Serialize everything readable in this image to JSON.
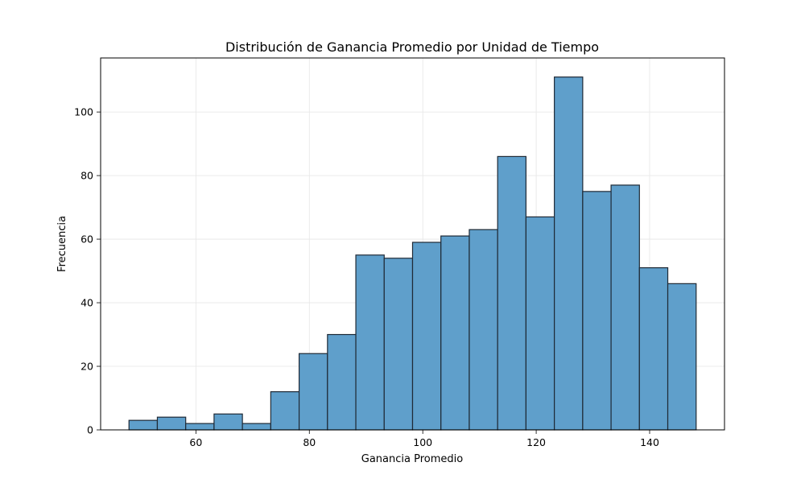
{
  "chart_data": {
    "type": "bar",
    "title": "Distribución de Ganancia Promedio por Unidad de Tiempo",
    "xlabel": "Ganancia Promedio",
    "ylabel": "Frecuencia",
    "xlim": [
      43.2,
      153.2
    ],
    "ylim": [
      0,
      117
    ],
    "xticks": [
      60,
      80,
      100,
      120,
      140
    ],
    "yticks": [
      0,
      20,
      40,
      60,
      80,
      100
    ],
    "grid": true,
    "bar_color": "#5f9fcb",
    "edge_color": "#1f2a36",
    "bin_start": 48.2,
    "bin_width": 5.0,
    "bins": [
      {
        "x0": 48.2,
        "x1": 53.2,
        "count": 3
      },
      {
        "x0": 53.2,
        "x1": 58.2,
        "count": 4
      },
      {
        "x0": 58.2,
        "x1": 63.2,
        "count": 2
      },
      {
        "x0": 63.2,
        "x1": 68.2,
        "count": 5
      },
      {
        "x0": 68.2,
        "x1": 73.2,
        "count": 2
      },
      {
        "x0": 73.2,
        "x1": 78.2,
        "count": 12
      },
      {
        "x0": 78.2,
        "x1": 83.2,
        "count": 24
      },
      {
        "x0": 83.2,
        "x1": 88.2,
        "count": 30
      },
      {
        "x0": 88.2,
        "x1": 93.2,
        "count": 55
      },
      {
        "x0": 93.2,
        "x1": 98.2,
        "count": 54
      },
      {
        "x0": 98.2,
        "x1": 103.2,
        "count": 59
      },
      {
        "x0": 103.2,
        "x1": 108.2,
        "count": 61
      },
      {
        "x0": 108.2,
        "x1": 113.2,
        "count": 63
      },
      {
        "x0": 113.2,
        "x1": 118.2,
        "count": 86
      },
      {
        "x0": 118.2,
        "x1": 123.2,
        "count": 67
      },
      {
        "x0": 123.2,
        "x1": 128.2,
        "count": 111
      },
      {
        "x0": 128.2,
        "x1": 133.2,
        "count": 75
      },
      {
        "x0": 133.2,
        "x1": 138.2,
        "count": 77
      },
      {
        "x0": 138.2,
        "x1": 143.2,
        "count": 51
      },
      {
        "x0": 143.2,
        "x1": 148.2,
        "count": 46
      }
    ]
  }
}
